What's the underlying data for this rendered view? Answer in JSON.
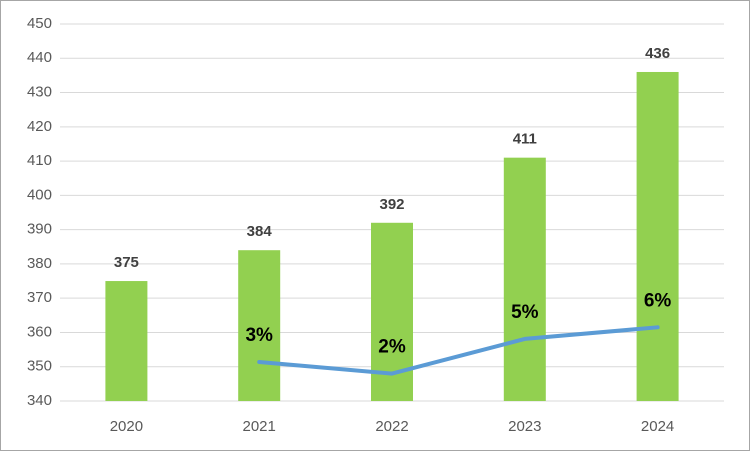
{
  "chart_data": {
    "type": "bar",
    "categories": [
      "2020",
      "2021",
      "2022",
      "2023",
      "2024"
    ],
    "series": [
      {
        "type": "bar",
        "color": "#92d050",
        "values": [
          375,
          384,
          392,
          411,
          436
        ]
      },
      {
        "type": "line",
        "color": "#5b9bd5",
        "axis": "y2",
        "values": [
          null,
          3,
          2,
          5,
          6
        ],
        "value_labels": [
          null,
          "3%",
          "2%",
          "5%",
          "6%"
        ]
      }
    ],
    "ylim": [
      340,
      450
    ],
    "yticks": [
      340,
      350,
      360,
      370,
      380,
      390,
      400,
      410,
      420,
      430,
      440,
      450
    ],
    "y2lim": [
      -0.37,
      32.22
    ],
    "grid": true
  }
}
